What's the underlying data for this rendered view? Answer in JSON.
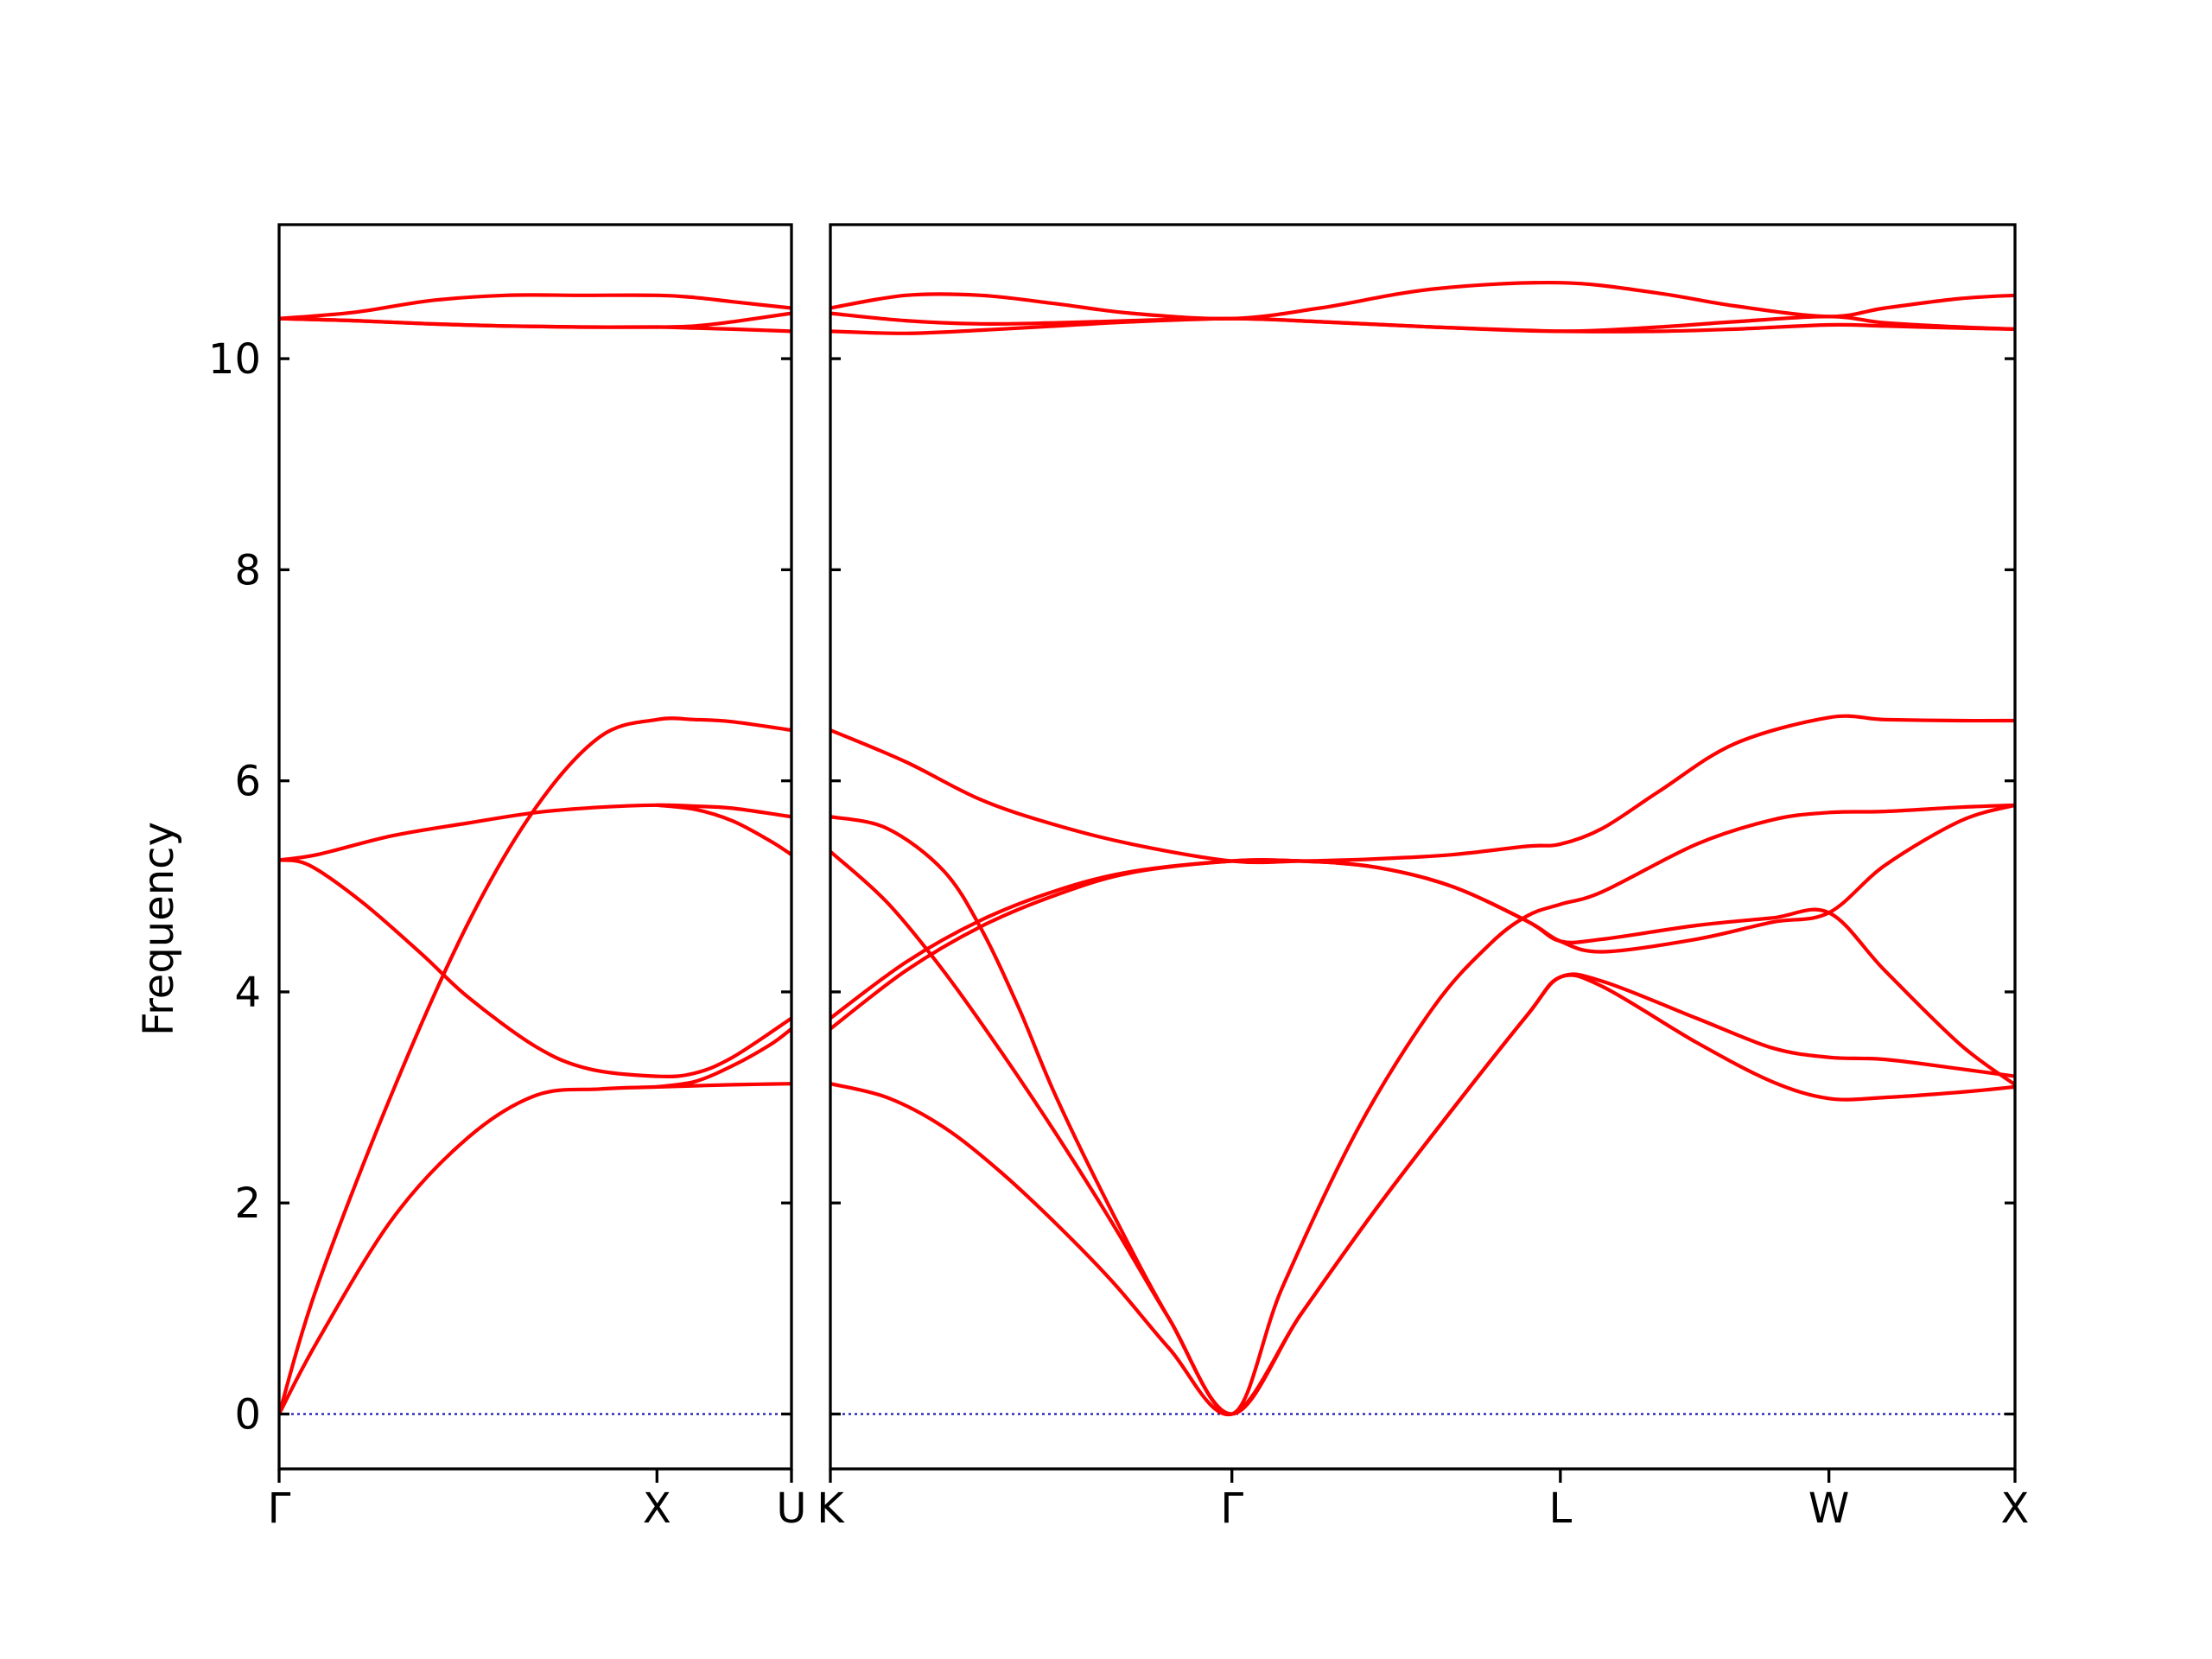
{
  "chart_data": {
    "type": "line",
    "ylabel": "Frequency",
    "ylim": [
      -0.52,
      11.27
    ],
    "yticks": [
      0,
      2,
      4,
      6,
      8,
      10
    ],
    "grid": false,
    "legend": "none",
    "color": "#ff0000",
    "zero_line_color": "#0000aa",
    "panels": [
      {
        "name": "panel-1",
        "xlim": [
          0,
          1.356
        ],
        "ticks": [
          {
            "x": 0,
            "label": "Γ"
          },
          {
            "x": 1.0,
            "label": "X"
          },
          {
            "x": 1.356,
            "label": "U"
          }
        ],
        "series": [
          {
            "x": [
              0,
              0.1,
              0.3,
              0.5,
              0.68,
              0.85,
              1.0,
              1.1,
              1.2,
              1.356
            ],
            "y": [
              0,
              0.68,
              1.85,
              2.62,
              3.02,
              3.08,
              3.1,
              3.11,
              3.12,
              3.13
            ]
          },
          {
            "x": [
              0,
              0.1,
              0.3,
              0.5,
              0.68,
              0.85,
              1.0,
              1.1,
              1.2,
              1.356
            ],
            "y": [
              0,
              1.2,
              3.05,
              4.65,
              5.75,
              6.42,
              6.58,
              6.58,
              6.56,
              6.48
            ]
          },
          {
            "x": [
              0,
              0.08,
              0.22,
              0.38,
              0.5,
              0.68,
              0.82,
              1.0,
              1.1,
              1.2,
              1.356
            ],
            "y": [
              5.25,
              5.2,
              4.85,
              4.35,
              3.95,
              3.48,
              3.27,
              3.2,
              3.23,
              3.38,
              3.75
            ]
          },
          {
            "x": [
              0,
              0.1,
              0.3,
              0.5,
              0.68,
              0.85,
              1.0,
              1.1,
              1.2,
              1.356
            ],
            "y": [
              5.25,
              5.3,
              5.48,
              5.6,
              5.7,
              5.75,
              5.77,
              5.76,
              5.74,
              5.66
            ]
          },
          {
            "x": [
              1.0,
              1.1,
              1.2,
              1.3,
              1.356
            ],
            "y": [
              3.1,
              3.15,
              3.3,
              3.5,
              3.65
            ]
          },
          {
            "x": [
              1.0,
              1.1,
              1.2,
              1.3,
              1.356
            ],
            "y": [
              5.77,
              5.73,
              5.62,
              5.43,
              5.3
            ]
          },
          {
            "x": [
              0,
              0.2,
              0.4,
              0.6,
              0.8,
              1.0,
              1.1,
              1.2,
              1.356
            ],
            "y": [
              10.38,
              10.36,
              10.33,
              10.31,
              10.3,
              10.3,
              10.31,
              10.35,
              10.43
            ]
          },
          {
            "x": [
              0,
              0.2,
              0.4,
              0.6,
              0.8,
              1.0,
              1.1,
              1.2,
              1.356
            ],
            "y": [
              10.38,
              10.44,
              10.55,
              10.6,
              10.6,
              10.6,
              10.58,
              10.54,
              10.48
            ]
          },
          {
            "x": [
              0,
              0.2,
              0.4,
              0.6,
              0.8,
              1.0,
              1.1,
              1.2,
              1.356
            ],
            "y": [
              10.38,
              10.36,
              10.33,
              10.31,
              10.3,
              10.3,
              10.29,
              10.28,
              10.26
            ]
          }
        ]
      },
      {
        "name": "panel-2",
        "xlim": [
          0,
          3.145
        ],
        "ticks": [
          {
            "x": 0,
            "label": "K"
          },
          {
            "x": 1.066,
            "label": "Γ"
          },
          {
            "x": 1.938,
            "label": "L"
          },
          {
            "x": 2.651,
            "label": "W"
          },
          {
            "x": 3.145,
            "label": "X"
          }
        ],
        "series": [
          {
            "x": [
              0,
              0.15,
              0.3,
              0.45,
              0.6,
              0.75,
              0.9,
              1.066,
              1.25,
              1.45,
              1.65,
              1.85,
              1.938,
              2.05,
              2.3,
              2.5,
              2.651,
              2.8,
              3.0,
              3.145
            ],
            "y": [
              3.13,
              3.0,
              2.72,
              2.3,
              1.8,
              1.25,
              0.62,
              0,
              0.95,
              1.95,
              2.88,
              3.78,
              4.14,
              4.05,
              3.52,
              3.15,
              2.99,
              3.0,
              3.05,
              3.1
            ]
          },
          {
            "x": [
              0,
              0.15,
              0.3,
              0.45,
              0.6,
              0.75,
              0.9,
              1.066,
              1.25,
              1.45,
              1.65,
              1.85,
              1.938,
              2.05,
              2.3,
              2.5,
              2.651,
              2.8,
              3.0,
              3.145
            ],
            "y": [
              5.33,
              4.85,
              4.2,
              3.45,
              2.65,
              1.8,
              0.9,
              0,
              0.95,
              1.95,
              2.88,
              3.78,
              4.14,
              4.1,
              3.75,
              3.47,
              3.38,
              3.36,
              3.27,
              3.2
            ]
          },
          {
            "x": [
              0,
              0.15,
              0.3,
              0.4,
              0.5,
              0.6,
              0.75,
              0.9,
              1.066,
              1.2,
              1.4,
              1.6,
              1.75,
              1.85,
              1.938,
              2.05,
              2.3,
              2.5,
              2.651,
              2.8,
              3.0,
              3.145
            ],
            "y": [
              5.66,
              5.55,
              5.15,
              4.6,
              3.85,
              3.0,
              1.9,
              0.9,
              0,
              1.2,
              2.7,
              3.85,
              4.45,
              4.72,
              4.83,
              4.95,
              5.4,
              5.63,
              5.7,
              5.71,
              5.75,
              5.77
            ]
          },
          {
            "x": [
              0,
              0.2,
              0.4,
              0.6,
              0.8,
              1.066,
              1.25,
              1.45,
              1.65,
              1.85,
              1.938,
              2.05,
              2.3,
              2.5,
              2.651,
              2.8,
              3.0,
              3.145
            ],
            "y": [
              3.65,
              4.2,
              4.62,
              4.92,
              5.13,
              5.24,
              5.24,
              5.18,
              5.0,
              4.67,
              4.48,
              4.5,
              4.63,
              4.7,
              4.75,
              4.2,
              3.5,
              3.12
            ]
          },
          {
            "x": [
              0,
              0.2,
              0.4,
              0.6,
              0.8,
              1.066,
              1.25,
              1.45,
              1.65,
              1.85,
              1.938,
              2.05,
              2.3,
              2.5,
              2.651,
              2.8,
              3.0,
              3.145
            ],
            "y": [
              3.75,
              4.28,
              4.68,
              4.96,
              5.14,
              5.24,
              5.24,
              5.18,
              5.0,
              4.67,
              4.48,
              4.38,
              4.5,
              4.66,
              4.75,
              5.2,
              5.62,
              5.77
            ]
          },
          {
            "x": [
              0,
              0.2,
              0.4,
              0.6,
              0.8,
              1.066,
              1.25,
              1.45,
              1.65,
              1.85,
              1.938,
              2.05,
              2.2,
              2.4,
              2.651,
              2.8,
              3.0,
              3.145
            ],
            "y": [
              6.48,
              6.18,
              5.82,
              5.58,
              5.4,
              5.24,
              5.24,
              5.26,
              5.3,
              5.38,
              5.4,
              5.55,
              5.9,
              6.35,
              6.6,
              6.58,
              6.57,
              6.57
            ]
          },
          {
            "x": [
              0,
              0.2,
              0.4,
              0.6,
              0.8,
              1.066,
              1.3,
              1.6,
              1.938,
              2.2,
              2.4,
              2.651,
              2.8,
              3.0,
              3.145
            ],
            "y": [
              10.26,
              10.24,
              10.27,
              10.31,
              10.35,
              10.38,
              10.35,
              10.3,
              10.26,
              10.26,
              10.28,
              10.32,
              10.31,
              10.29,
              10.28
            ]
          },
          {
            "x": [
              0,
              0.2,
              0.4,
              0.6,
              0.8,
              1.066,
              1.3,
              1.6,
              1.938,
              2.2,
              2.4,
              2.651,
              2.8,
              3.0,
              3.145
            ],
            "y": [
              10.43,
              10.36,
              10.33,
              10.34,
              10.36,
              10.38,
              10.35,
              10.3,
              10.26,
              10.3,
              10.35,
              10.4,
              10.34,
              10.3,
              10.28
            ]
          },
          {
            "x": [
              0,
              0.2,
              0.4,
              0.6,
              0.8,
              1.066,
              1.3,
              1.6,
              1.938,
              2.2,
              2.4,
              2.651,
              2.8,
              3.0,
              3.145
            ],
            "y": [
              10.48,
              10.6,
              10.6,
              10.52,
              10.43,
              10.38,
              10.48,
              10.66,
              10.72,
              10.62,
              10.5,
              10.4,
              10.48,
              10.57,
              10.6
            ]
          }
        ]
      }
    ]
  }
}
